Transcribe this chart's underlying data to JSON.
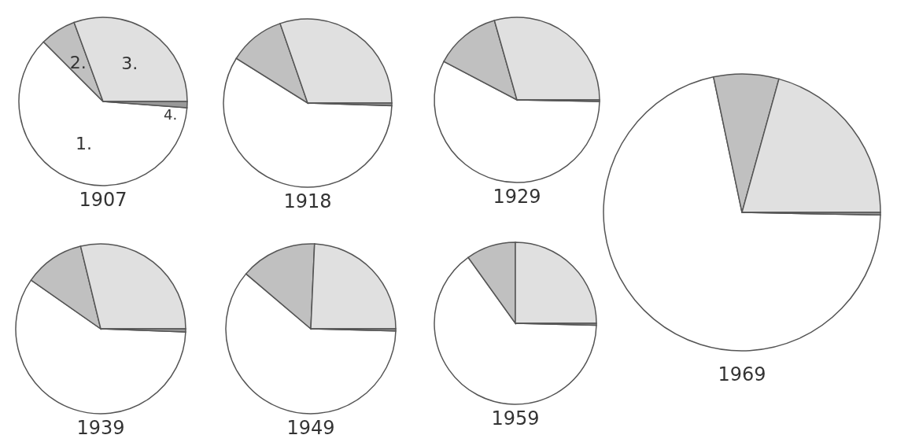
{
  "chart_data": [
    {
      "type": "pie",
      "title": "1907",
      "categories": [
        "1.",
        "2.",
        "3.",
        "4."
      ],
      "values": [
        61.3,
        6.9,
        30.6,
        1.2
      ],
      "colors": [
        "#ffffff",
        "#c0c0c0",
        "#e0e0e0",
        "#999999"
      ]
    },
    {
      "type": "pie",
      "title": "1918",
      "categories": [
        null,
        null,
        null,
        null
      ],
      "values": [
        58.4,
        10.8,
        30.3,
        0.5
      ],
      "colors": [
        "#ffffff",
        "#c0c0c0",
        "#e0e0e0",
        "#999999"
      ]
    },
    {
      "type": "pie",
      "title": "1929",
      "categories": [
        null,
        null,
        null,
        null
      ],
      "values": [
        57.4,
        12.9,
        29.4,
        0.3
      ],
      "colors": [
        "#ffffff",
        "#c0c0c0",
        "#e0e0e0",
        "#999999"
      ]
    },
    {
      "type": "pie",
      "title": "1939",
      "categories": [
        null,
        null,
        null,
        null
      ],
      "values": [
        59.1,
        11.5,
        28.8,
        0.6
      ],
      "colors": [
        "#ffffff",
        "#c0c0c0",
        "#e0e0e0",
        "#999999"
      ]
    },
    {
      "type": "pie",
      "title": "1949",
      "categories": [
        null,
        null,
        null,
        null
      ],
      "values": [
        60.8,
        14.5,
        24.3,
        0.4
      ],
      "colors": [
        "#ffffff",
        "#c0c0c0",
        "#e0e0e0",
        "#999999"
      ]
    },
    {
      "type": "pie",
      "title": "1959",
      "categories": [
        null,
        null,
        null,
        null
      ],
      "values": [
        64.7,
        9.9,
        25.0,
        0.4
      ],
      "colors": [
        "#ffffff",
        "#c0c0c0",
        "#e0e0e0",
        "#999999"
      ]
    },
    {
      "type": "pie",
      "title": "1969",
      "categories": [
        null,
        null,
        null,
        null
      ],
      "values": [
        71.4,
        7.6,
        20.7,
        0.3
      ],
      "colors": [
        "#ffffff",
        "#c0c0c0",
        "#e0e0e0",
        "#999999"
      ]
    }
  ]
}
